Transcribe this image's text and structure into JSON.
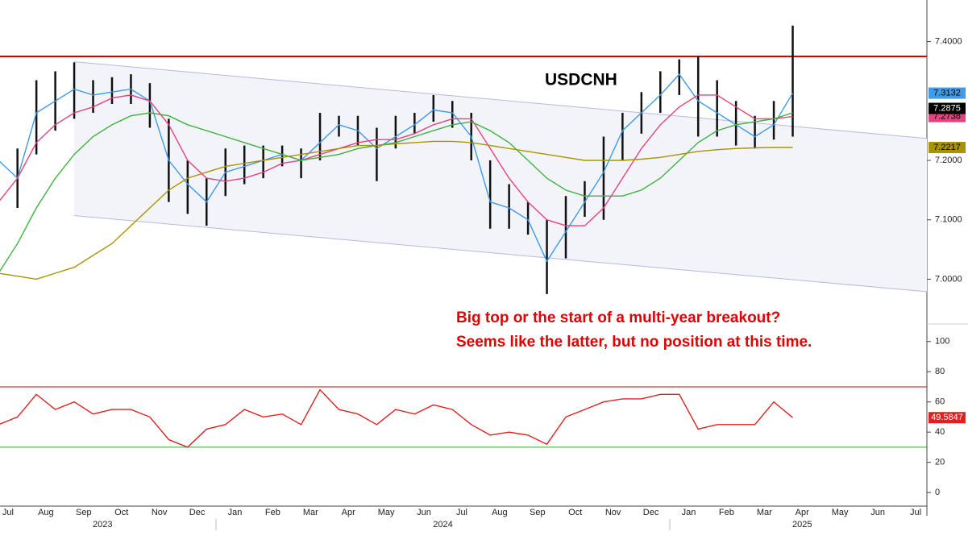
{
  "chart_data": [
    {
      "type": "ohlc",
      "title": "USDCNH",
      "annotation": [
        "Big top or the start of a multi-year breakout?",
        "Seems like the latter, but no position at this time."
      ],
      "categories": [
        "Jul",
        null,
        "Aug",
        null,
        "Sep",
        null,
        "Oct",
        null,
        "Nov",
        null,
        "Dec",
        null,
        "Jan",
        null,
        "Feb",
        null,
        "Mar",
        null,
        "Apr",
        null,
        "May",
        null,
        "Jun",
        null,
        "Jul",
        null,
        "Aug",
        null,
        "Sep",
        null,
        "Oct",
        null,
        "Nov",
        null,
        "Dec",
        null,
        "Jan",
        null,
        "Feb",
        null,
        "Mar",
        null,
        "Apr",
        null,
        "May",
        null,
        "Jun",
        null,
        "Jul",
        null
      ],
      "years": [
        "2023",
        "2024",
        "2025"
      ],
      "high": [
        7.24,
        7.22,
        7.335,
        7.35,
        7.365,
        7.335,
        7.34,
        7.345,
        7.33,
        7.27,
        7.2,
        7.17,
        7.22,
        7.225,
        7.225,
        7.225,
        7.22,
        7.28,
        7.275,
        7.275,
        7.255,
        7.275,
        7.28,
        7.31,
        7.3,
        7.28,
        7.2,
        7.16,
        7.13,
        7.1,
        7.14,
        7.165,
        7.24,
        7.28,
        7.315,
        7.35,
        7.37,
        7.375,
        7.335,
        7.3,
        7.275,
        7.3,
        7.427,
        null,
        null,
        null,
        null,
        null,
        null,
        null
      ],
      "low": [
        7.13,
        7.12,
        7.21,
        7.25,
        7.27,
        7.28,
        7.295,
        7.295,
        7.255,
        7.13,
        7.11,
        7.09,
        7.14,
        7.16,
        7.17,
        7.19,
        7.17,
        7.2,
        7.24,
        7.225,
        7.165,
        7.22,
        7.245,
        7.265,
        7.255,
        7.2,
        7.085,
        7.085,
        7.075,
        6.975,
        7.035,
        7.105,
        7.1,
        7.2,
        7.245,
        7.28,
        7.31,
        7.24,
        7.24,
        7.225,
        7.22,
        7.235,
        7.24,
        null,
        null,
        null,
        null,
        null,
        null,
        null
      ],
      "last_close": 7.2875,
      "close_color": "#000000",
      "series": [
        {
          "color": "#3d9be9",
          "values": [
            7.2,
            7.17,
            7.28,
            7.3,
            7.32,
            7.31,
            7.315,
            7.32,
            7.3,
            7.2,
            7.16,
            7.13,
            7.18,
            7.19,
            7.2,
            7.21,
            7.2,
            7.23,
            7.26,
            7.25,
            7.22,
            7.24,
            7.26,
            7.285,
            7.28,
            7.24,
            7.13,
            7.12,
            7.1,
            7.03,
            7.08,
            7.13,
            7.18,
            7.25,
            7.28,
            7.31,
            7.345,
            7.3,
            7.28,
            7.26,
            7.24,
            7.26,
            7.3132,
            null,
            null,
            null,
            null,
            null,
            null,
            null
          ]
        },
        {
          "color": "#e8417d",
          "values": [
            7.13,
            7.17,
            7.23,
            7.26,
            7.28,
            7.29,
            7.305,
            7.31,
            7.3,
            7.26,
            7.2,
            7.17,
            7.165,
            7.17,
            7.18,
            7.195,
            7.2,
            7.21,
            7.22,
            7.23,
            7.235,
            7.235,
            7.245,
            7.26,
            7.27,
            7.27,
            7.22,
            7.17,
            7.13,
            7.1,
            7.09,
            7.09,
            7.12,
            7.17,
            7.22,
            7.26,
            7.29,
            7.31,
            7.31,
            7.29,
            7.27,
            7.27,
            7.2738,
            null,
            null,
            null,
            null,
            null,
            null,
            null
          ]
        },
        {
          "color": "#3cb43c",
          "values": [
            7.01,
            7.06,
            7.12,
            7.17,
            7.21,
            7.24,
            7.26,
            7.275,
            7.28,
            7.275,
            7.26,
            7.25,
            7.24,
            7.23,
            7.22,
            7.21,
            7.2,
            7.205,
            7.21,
            7.22,
            7.225,
            7.23,
            7.24,
            7.25,
            7.26,
            7.265,
            7.25,
            7.23,
            7.2,
            7.17,
            7.15,
            7.14,
            7.14,
            7.14,
            7.15,
            7.17,
            7.2,
            7.23,
            7.25,
            7.26,
            7.265,
            7.27,
            7.28,
            null,
            null,
            null,
            null,
            null,
            null,
            null
          ]
        },
        {
          "color": "#a89400",
          "values": [
            7.01,
            7.005,
            7.0,
            7.01,
            7.02,
            7.04,
            7.06,
            7.09,
            7.12,
            7.15,
            7.17,
            7.18,
            7.19,
            7.195,
            7.2,
            7.205,
            7.21,
            7.215,
            7.22,
            7.225,
            7.225,
            7.228,
            7.23,
            7.232,
            7.232,
            7.23,
            7.225,
            7.22,
            7.215,
            7.21,
            7.205,
            7.2,
            7.2,
            7.2,
            7.202,
            7.205,
            7.21,
            7.215,
            7.218,
            7.22,
            7.221,
            7.222,
            7.2217,
            null,
            null,
            null,
            null,
            null,
            null,
            null
          ]
        }
      ],
      "tagged": [
        0,
        1,
        3
      ],
      "ylim": [
        6.93,
        7.47
      ],
      "yticks": [
        {
          "value": 7.0,
          "label": "7.0000"
        },
        {
          "value": 7.1,
          "label": "7.1000"
        },
        {
          "value": 7.2,
          "label": "7.2000"
        },
        {
          "value": 7.4,
          "label": "7.4000"
        }
      ],
      "lines": [
        {
          "value": 7.375,
          "color": "#d40000"
        }
      ],
      "channel": {
        "upper": [
          7.366,
          7.237
        ],
        "lower": [
          7.107,
          6.979
        ],
        "color": "#b8b8e0"
      }
    },
    {
      "type": "line",
      "series": [
        {
          "color": "#e02020",
          "values": [
            45,
            50,
            65,
            55,
            60,
            52,
            55,
            55,
            50,
            35,
            30,
            42,
            45,
            55,
            50,
            52,
            45,
            68,
            55,
            52,
            45,
            55,
            52,
            58,
            55,
            45,
            38,
            40,
            38,
            32,
            50,
            55,
            60,
            62,
            62,
            65,
            65,
            42,
            45,
            45,
            45,
            60,
            49.5847,
            null,
            null,
            null,
            null,
            null,
            null,
            null
          ]
        }
      ],
      "ylim": [
        -9,
        110
      ],
      "yticks": [
        0,
        20,
        40,
        60,
        80,
        100
      ],
      "lines": [
        {
          "value": 70,
          "color": "#d40000"
        },
        {
          "value": 30,
          "color": "#20b020"
        }
      ]
    }
  ]
}
